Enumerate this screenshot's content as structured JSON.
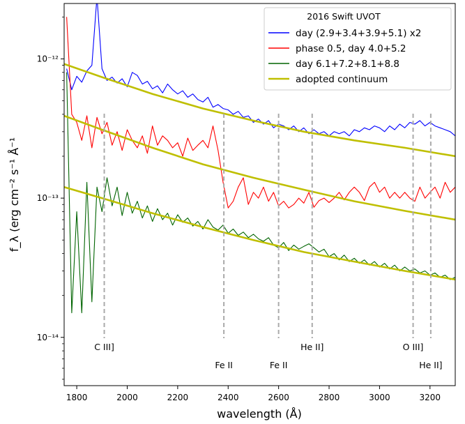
{
  "chart_data": {
    "type": "line",
    "xlabel": "wavelength (Å)",
    "ylabel": "f_λ (erg cm⁻² s⁻¹ Å⁻¹",
    "xlim": [
      1750,
      3300
    ],
    "ylim": [
      4.5e-15,
      2.5e-12
    ],
    "yscale": "log",
    "grid": false,
    "legend": {
      "title": "2016 Swift UVOT",
      "placement": "top-right"
    },
    "x_ticks": [
      1800,
      2000,
      2200,
      2400,
      2600,
      2800,
      3000,
      3200
    ],
    "x_tick_labels": [
      "1800",
      "2000",
      "2200",
      "2400",
      "2600",
      "2800",
      "3000",
      "3200"
    ],
    "y_ticks": [
      1e-14,
      1e-13,
      1e-12
    ],
    "y_tick_labels": [
      "10⁻¹⁴",
      "10⁻¹³",
      "10⁻¹²"
    ],
    "series": [
      {
        "name": "day (2.9+3.4+3.9+5.1) x2",
        "color": "#0000ff",
        "x": [
          1760,
          1780,
          1800,
          1820,
          1840,
          1860,
          1880,
          1900,
          1920,
          1940,
          1960,
          1980,
          2000,
          2020,
          2040,
          2060,
          2080,
          2100,
          2120,
          2140,
          2160,
          2180,
          2200,
          2220,
          2240,
          2260,
          2280,
          2300,
          2320,
          2340,
          2360,
          2380,
          2400,
          2420,
          2440,
          2460,
          2480,
          2500,
          2520,
          2540,
          2560,
          2580,
          2600,
          2620,
          2640,
          2660,
          2680,
          2700,
          2720,
          2740,
          2760,
          2780,
          2800,
          2820,
          2840,
          2860,
          2880,
          2900,
          2920,
          2940,
          2960,
          2980,
          3000,
          3020,
          3040,
          3060,
          3080,
          3100,
          3120,
          3140,
          3160,
          3180,
          3200,
          3220,
          3240,
          3260,
          3280,
          3300
        ],
        "y": [
          8.5e-13,
          6e-13,
          7.5e-13,
          6.8e-13,
          8.2e-13,
          9e-13,
          2.8e-12,
          8.5e-13,
          7e-13,
          7.4e-13,
          6.7e-13,
          7.2e-13,
          6.3e-13,
          8e-13,
          7.6e-13,
          6.6e-13,
          6.9e-13,
          6.1e-13,
          6.4e-13,
          5.7e-13,
          6.6e-13,
          6e-13,
          5.6e-13,
          5.9e-13,
          5.3e-13,
          5.6e-13,
          5.1e-13,
          4.9e-13,
          5.3e-13,
          4.5e-13,
          4.7e-13,
          4.4e-13,
          4.3e-13,
          4e-13,
          4.2e-13,
          3.8e-13,
          3.9e-13,
          3.5e-13,
          3.7e-13,
          3.4e-13,
          3.6e-13,
          3.2e-13,
          3.4e-13,
          3.3e-13,
          3.1e-13,
          3.3e-13,
          3e-13,
          3.2e-13,
          2.9e-13,
          3.1e-13,
          2.9e-13,
          3e-13,
          2.8e-13,
          3e-13,
          2.9e-13,
          3e-13,
          2.8e-13,
          3.1e-13,
          3e-13,
          3.2e-13,
          3.1e-13,
          3.3e-13,
          3.2e-13,
          3e-13,
          3.3e-13,
          3.1e-13,
          3.4e-13,
          3.2e-13,
          3.5e-13,
          3.4e-13,
          3.6e-13,
          3.3e-13,
          3.5e-13,
          3.3e-13,
          3.2e-13,
          3.1e-13,
          3e-13,
          2.8e-13
        ]
      },
      {
        "name": "phase 0.5, day 4.0+5.2",
        "color": "#ff0000",
        "x": [
          1760,
          1780,
          1800,
          1820,
          1840,
          1860,
          1880,
          1900,
          1920,
          1940,
          1960,
          1980,
          2000,
          2020,
          2040,
          2060,
          2080,
          2100,
          2120,
          2140,
          2160,
          2180,
          2200,
          2220,
          2240,
          2260,
          2280,
          2300,
          2320,
          2340,
          2360,
          2380,
          2400,
          2420,
          2440,
          2460,
          2480,
          2500,
          2520,
          2540,
          2560,
          2580,
          2600,
          2620,
          2640,
          2660,
          2680,
          2700,
          2720,
          2740,
          2760,
          2780,
          2800,
          2820,
          2840,
          2860,
          2880,
          2900,
          2920,
          2940,
          2960,
          2980,
          3000,
          3020,
          3040,
          3060,
          3080,
          3100,
          3120,
          3140,
          3160,
          3180,
          3200,
          3220,
          3240,
          3260,
          3280,
          3300
        ],
        "y": [
          2e-12,
          4e-13,
          3.5e-13,
          2.6e-13,
          3.9e-13,
          2.3e-13,
          3.8e-13,
          2.9e-13,
          3.5e-13,
          2.4e-13,
          3e-13,
          2.2e-13,
          3.1e-13,
          2.6e-13,
          2.3e-13,
          2.8e-13,
          2.1e-13,
          3.3e-13,
          2.4e-13,
          2.8e-13,
          2.6e-13,
          2.3e-13,
          2.5e-13,
          2e-13,
          2.7e-13,
          2.2e-13,
          2.4e-13,
          2.6e-13,
          2.3e-13,
          3.3e-13,
          2.2e-13,
          1.3e-13,
          8.5e-14,
          9.5e-14,
          1.2e-13,
          1.4e-13,
          9e-14,
          1.1e-13,
          1e-13,
          1.2e-13,
          9.5e-14,
          1.1e-13,
          8.8e-14,
          9.5e-14,
          8.5e-14,
          9e-14,
          1e-13,
          9.2e-14,
          1.1e-13,
          8.6e-14,
          9.6e-14,
          1e-13,
          9.3e-14,
          1e-13,
          1.1e-13,
          9.7e-14,
          1.1e-13,
          1.2e-13,
          1.1e-13,
          9.6e-14,
          1.2e-13,
          1.3e-13,
          1.1e-13,
          1.2e-13,
          1e-13,
          1.1e-13,
          1e-13,
          1.1e-13,
          1e-13,
          9.5e-14,
          1.2e-13,
          1e-13,
          1.1e-13,
          1.2e-13,
          1e-13,
          1.3e-13,
          1.1e-13,
          1.2e-13
        ]
      },
      {
        "name": "day 6.1+7.2+8.1+8.8",
        "color": "#006400",
        "x": [
          1760,
          1780,
          1800,
          1820,
          1840,
          1860,
          1880,
          1900,
          1920,
          1940,
          1960,
          1980,
          2000,
          2020,
          2040,
          2060,
          2080,
          2100,
          2120,
          2140,
          2160,
          2180,
          2200,
          2220,
          2240,
          2260,
          2280,
          2300,
          2320,
          2340,
          2360,
          2380,
          2400,
          2420,
          2440,
          2460,
          2480,
          2500,
          2520,
          2540,
          2560,
          2580,
          2600,
          2620,
          2640,
          2660,
          2680,
          2700,
          2720,
          2740,
          2760,
          2780,
          2800,
          2820,
          2840,
          2860,
          2880,
          2900,
          2920,
          2940,
          2960,
          2980,
          3000,
          3020,
          3040,
          3060,
          3080,
          3100,
          3120,
          3140,
          3160,
          3180,
          3200,
          3220,
          3240,
          3260,
          3280,
          3300
        ],
        "y": [
          8e-13,
          1.5e-14,
          8e-14,
          1.5e-14,
          1.3e-13,
          1.8e-14,
          1.2e-13,
          8e-14,
          1.4e-13,
          8.8e-14,
          1.2e-13,
          7.5e-14,
          1.1e-13,
          7.8e-14,
          9.5e-14,
          7.2e-14,
          8.8e-14,
          6.8e-14,
          8.4e-14,
          7e-14,
          7.8e-14,
          6.4e-14,
          7.6e-14,
          6.7e-14,
          7.2e-14,
          6.3e-14,
          6.8e-14,
          6e-14,
          7e-14,
          6.2e-14,
          5.9e-14,
          6.4e-14,
          5.6e-14,
          6e-14,
          5.4e-14,
          5.7e-14,
          5.2e-14,
          5.5e-14,
          5.1e-14,
          4.9e-14,
          5.2e-14,
          4.6e-14,
          4.4e-14,
          4.8e-14,
          4.2e-14,
          4.6e-14,
          4.3e-14,
          4.5e-14,
          4.7e-14,
          4.4e-14,
          4.1e-14,
          4.3e-14,
          3.8e-14,
          4e-14,
          3.6e-14,
          3.9e-14,
          3.5e-14,
          3.7e-14,
          3.4e-14,
          3.6e-14,
          3.3e-14,
          3.5e-14,
          3.2e-14,
          3.4e-14,
          3.1e-14,
          3.3e-14,
          3e-14,
          3.2e-14,
          3e-14,
          3.1e-14,
          2.9e-14,
          3e-14,
          2.8e-14,
          2.9e-14,
          2.7e-14,
          2.8e-14,
          2.6e-14,
          2.7e-14
        ]
      },
      {
        "name": "adopted continuum",
        "color": "#bfbf00",
        "curves": [
          {
            "x": [
              1750,
              1900,
              2100,
              2300,
              2500,
              2700,
              2900,
              3100,
              3300
            ],
            "y": [
              9.2e-13,
              7.4e-13,
              5.6e-13,
              4.4e-13,
              3.6e-13,
              3e-13,
              2.6e-13,
              2.3e-13,
              2e-13
            ]
          },
          {
            "x": [
              1750,
              1900,
              2100,
              2300,
              2500,
              2700,
              2900,
              3100,
              3300
            ],
            "y": [
              3.9e-13,
              3.1e-13,
              2.3e-13,
              1.75e-13,
              1.4e-13,
              1.15e-13,
              9.5e-14,
              8.1e-14,
              7e-14
            ]
          },
          {
            "x": [
              1750,
              1900,
              2100,
              2300,
              2500,
              2700,
              2900,
              3100,
              3300
            ],
            "y": [
              1.2e-13,
              1e-13,
              7.8e-14,
              6.2e-14,
              5e-14,
              4.1e-14,
              3.5e-14,
              3e-14,
              2.6e-14
            ]
          }
        ]
      }
    ],
    "annotations": [
      {
        "text": "C III]",
        "x": 1909,
        "row": "upper"
      },
      {
        "text": "Fe II",
        "x": 2383,
        "row": "lower"
      },
      {
        "text": "Fe II",
        "x": 2600,
        "row": "lower"
      },
      {
        "text": "He II]",
        "x": 2733,
        "row": "upper"
      },
      {
        "text": "O III]",
        "x": 3133,
        "row": "upper"
      },
      {
        "text": "He II]",
        "x": 3203,
        "row": "lower"
      }
    ]
  }
}
